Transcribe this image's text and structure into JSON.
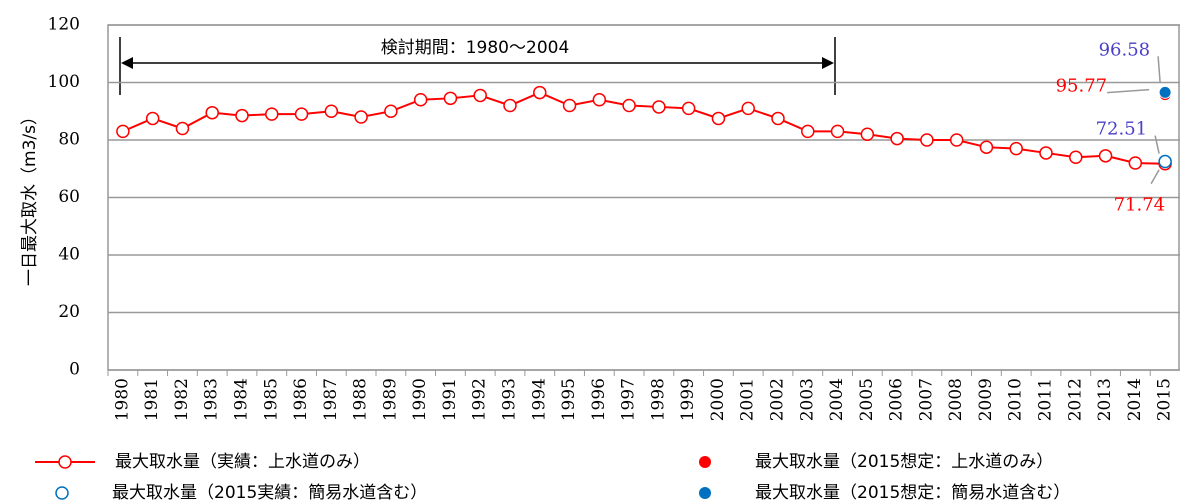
{
  "chart_data": {
    "type": "line",
    "y_axis_label": "一日最大取水（m3/s）",
    "annotation": "検討期間：1980～2004",
    "categories": [
      "1980",
      "1981",
      "1982",
      "1983",
      "1984",
      "1985",
      "1986",
      "1987",
      "1988",
      "1989",
      "1990",
      "1991",
      "1992",
      "1993",
      "1994",
      "1995",
      "1996",
      "1997",
      "1998",
      "1999",
      "2000",
      "2001",
      "2002",
      "2003",
      "2004",
      "2005",
      "2006",
      "2007",
      "2008",
      "2009",
      "2010",
      "2011",
      "2012",
      "2013",
      "2014",
      "2015"
    ],
    "series": [
      {
        "name": "最大取水量（実績：上水道のみ）",
        "color": "#ff0000",
        "marker": "open",
        "values": [
          83,
          87.5,
          84,
          89.5,
          88.5,
          89,
          89,
          90,
          88,
          90,
          94,
          94.5,
          95.5,
          92,
          96.5,
          92,
          94,
          92,
          91.5,
          91,
          87.5,
          91,
          87.5,
          83,
          83,
          82,
          80.5,
          80,
          80,
          77.5,
          77,
          75.5,
          74,
          74.5,
          72,
          71.74
        ]
      },
      {
        "name": "最大取水量（2015想定：上水道のみ）",
        "color": "#ff0000",
        "marker": "filled",
        "values": [
          null,
          null,
          null,
          null,
          null,
          null,
          null,
          null,
          null,
          null,
          null,
          null,
          null,
          null,
          null,
          null,
          null,
          null,
          null,
          null,
          null,
          null,
          null,
          null,
          null,
          null,
          null,
          null,
          null,
          null,
          null,
          null,
          null,
          null,
          null,
          95.77
        ]
      },
      {
        "name": "最大取水量（2015実績：簡易水道含む）",
        "color": "#0070c0",
        "marker": "open",
        "values": [
          null,
          null,
          null,
          null,
          null,
          null,
          null,
          null,
          null,
          null,
          null,
          null,
          null,
          null,
          null,
          null,
          null,
          null,
          null,
          null,
          null,
          null,
          null,
          null,
          null,
          null,
          null,
          null,
          null,
          null,
          null,
          null,
          null,
          null,
          null,
          72.51
        ]
      },
      {
        "name": "最大取水量（2015想定：簡易水道含む）",
        "color": "#0070c0",
        "marker": "filled",
        "values": [
          null,
          null,
          null,
          null,
          null,
          null,
          null,
          null,
          null,
          null,
          null,
          null,
          null,
          null,
          null,
          null,
          null,
          null,
          null,
          null,
          null,
          null,
          null,
          null,
          null,
          null,
          null,
          null,
          null,
          null,
          null,
          null,
          null,
          null,
          null,
          96.58
        ]
      }
    ],
    "ylim": [
      0,
      120
    ],
    "yticks": [
      0,
      20,
      40,
      60,
      80,
      100,
      120
    ],
    "grid": true
  }
}
